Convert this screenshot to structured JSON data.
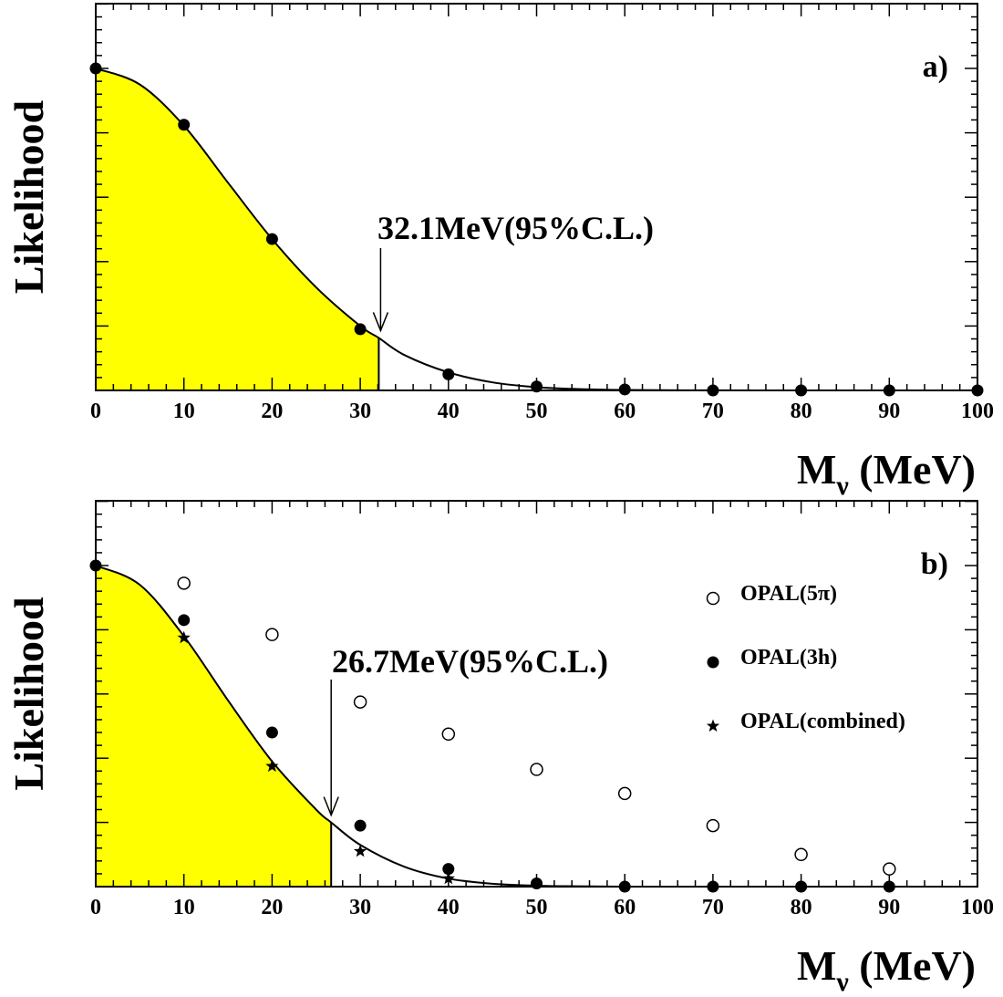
{
  "chart_data": [
    {
      "type": "scatter",
      "panel_label": "a)",
      "ylabel": "Likelihood",
      "xlabel_main": "M",
      "xlabel_sub": "ν",
      "xlabel_unit": " (MeV)",
      "xlim": [
        0,
        100
      ],
      "ylim": [
        0,
        1
      ],
      "x_ticks": [
        "0",
        "10",
        "20",
        "30",
        "40",
        "50",
        "60",
        "70",
        "80",
        "90",
        "100"
      ],
      "fill_color": "#ffff00",
      "fill_upto": 32.1,
      "limit_annotation": "32.1MeV(95%C.L.)",
      "curve": {
        "x": [
          0,
          5,
          10,
          15,
          20,
          25,
          30,
          32.1,
          35,
          40,
          45,
          50,
          55,
          60,
          70,
          80,
          90,
          100
        ],
        "y": [
          1.0,
          0.95,
          0.822,
          0.645,
          0.47,
          0.32,
          0.2,
          0.163,
          0.11,
          0.056,
          0.025,
          0.01,
          0.004,
          0.0015,
          0.0002,
          0.0,
          0.0,
          0.0
        ]
      },
      "series": [
        {
          "marker": "filled-circle",
          "x": [
            0,
            10,
            20,
            30,
            40,
            50,
            60,
            70,
            80,
            90,
            100
          ],
          "y": [
            1.0,
            0.825,
            0.47,
            0.19,
            0.05,
            0.012,
            0.003,
            0.0,
            0.0,
            0.0,
            0.0
          ]
        }
      ]
    },
    {
      "type": "scatter",
      "panel_label": "b)",
      "ylabel": "Likelihood",
      "xlabel_main": "M",
      "xlabel_sub": "ν",
      "xlabel_unit": " (MeV)",
      "xlim": [
        0,
        100
      ],
      "ylim": [
        0,
        1
      ],
      "x_ticks": [
        "0",
        "10",
        "20",
        "30",
        "40",
        "50",
        "60",
        "70",
        "80",
        "90",
        "100"
      ],
      "fill_color": "#ffff00",
      "fill_upto": 26.7,
      "limit_annotation": "26.7MeV(95%C.L.)",
      "legend_position": "right",
      "curve": {
        "x": [
          0,
          5,
          10,
          15,
          20,
          25,
          26.7,
          30,
          35,
          40,
          45,
          50,
          55,
          60,
          70,
          80,
          90,
          100
        ],
        "y": [
          1.0,
          0.94,
          0.78,
          0.58,
          0.39,
          0.24,
          0.2,
          0.13,
          0.062,
          0.025,
          0.009,
          0.003,
          0.001,
          0.0,
          0.0,
          0.0,
          0.0,
          0.0
        ]
      },
      "series": [
        {
          "name": "OPAL(5π)",
          "marker": "open-circle",
          "x": [
            10,
            20,
            30,
            40,
            50,
            60,
            70,
            80,
            90
          ],
          "y": [
            0.945,
            0.785,
            0.575,
            0.475,
            0.365,
            0.29,
            0.19,
            0.1,
            0.055
          ]
        },
        {
          "name": "OPAL(3h)",
          "marker": "filled-circle",
          "x": [
            0,
            10,
            20,
            30,
            40,
            50,
            60,
            70,
            80,
            90
          ],
          "y": [
            1.0,
            0.83,
            0.48,
            0.19,
            0.055,
            0.01,
            0.0,
            0.0,
            0.0,
            0.0
          ]
        },
        {
          "name": "OPAL(combined)",
          "marker": "star",
          "x": [
            10,
            20,
            30,
            40
          ],
          "y": [
            0.775,
            0.375,
            0.11,
            0.025
          ]
        }
      ]
    }
  ]
}
